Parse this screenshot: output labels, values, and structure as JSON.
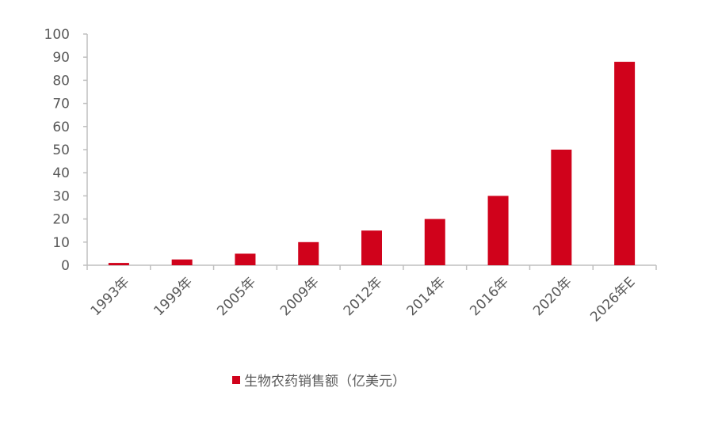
{
  "chart_data": {
    "type": "bar",
    "categories": [
      "1993年",
      "1999年",
      "2005年",
      "2009年",
      "2012年",
      "2014年",
      "2016年",
      "2020年",
      "2026年E"
    ],
    "series": [
      {
        "name": "生物农药销售额（亿美元）",
        "color": "#d0021b",
        "values": [
          1,
          2.5,
          5,
          10,
          15,
          20,
          30,
          50,
          88
        ]
      }
    ],
    "ylim": [
      0,
      100
    ],
    "yticks": [
      0,
      10,
      20,
      30,
      40,
      50,
      60,
      70,
      80,
      90,
      100
    ],
    "grid": false,
    "legend": "bottom"
  }
}
